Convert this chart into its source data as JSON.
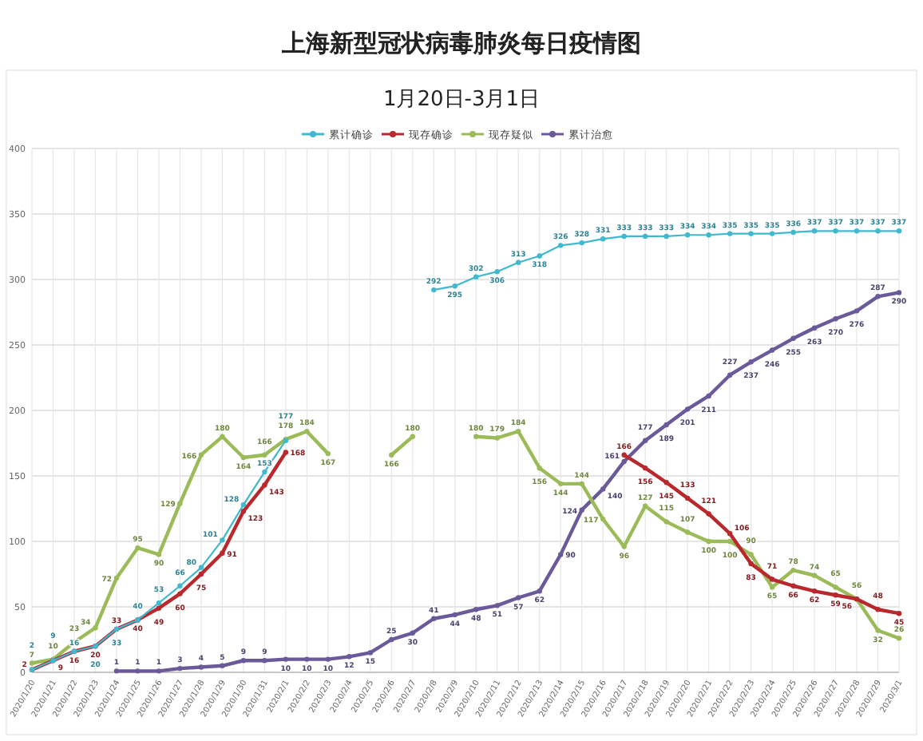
{
  "chart_data": {
    "type": "line",
    "title": "上海新型冠状病毒肺炎每日疫情图",
    "subtitle": "1月20日-3月1日",
    "categories": [
      "2020/1/20",
      "2020/1/21",
      "2020/1/22",
      "2020/1/23",
      "2020/1/24",
      "2020/1/25",
      "2020/1/26",
      "2020/1/27",
      "2020/1/28",
      "2020/1/29",
      "2020/1/30",
      "2020/1/31",
      "2020/2/1",
      "2020/2/2",
      "2020/2/3",
      "2020/2/4",
      "2020/2/5",
      "2020/2/6",
      "2020/2/7",
      "2020/2/8",
      "2020/2/9",
      "2020/2/10",
      "2020/2/11",
      "2020/2/12",
      "2020/2/13",
      "2020/2/14",
      "2020/2/15",
      "2020/2/16",
      "2020/2/17",
      "2020/2/18",
      "2020/2/19",
      "2020/2/20",
      "2020/2/21",
      "2020/2/22",
      "2020/2/23",
      "2020/2/24",
      "2020/2/25",
      "2020/2/26",
      "2020/2/27",
      "2020/2/28",
      "2020/2/29",
      "2020/3/1"
    ],
    "series": [
      {
        "name": "累计确诊",
        "color": "#3fb8d0",
        "values": [
          2,
          9,
          16,
          20,
          33,
          40,
          53,
          66,
          80,
          101,
          128,
          153,
          177,
          null,
          null,
          null,
          null,
          null,
          null,
          292,
          295,
          302,
          306,
          313,
          318,
          326,
          328,
          331,
          333,
          333,
          333,
          334,
          334,
          335,
          335,
          335,
          336,
          337,
          337,
          337,
          337,
          337
        ]
      },
      {
        "name": "现存确诊",
        "color": "#b8282c",
        "values": [
          2,
          9,
          16,
          20,
          33,
          40,
          49,
          60,
          75,
          91,
          123,
          143,
          168,
          null,
          null,
          null,
          null,
          null,
          null,
          null,
          null,
          null,
          null,
          null,
          null,
          null,
          null,
          null,
          166,
          156,
          145,
          133,
          121,
          106,
          83,
          71,
          66,
          62,
          59,
          56,
          48,
          45
        ]
      },
      {
        "name": "现存疑似",
        "color": "#9bbb59",
        "values": [
          7,
          10,
          23,
          34,
          72,
          95,
          90,
          129,
          166,
          180,
          164,
          166,
          178,
          184,
          167,
          null,
          null,
          166,
          180,
          null,
          null,
          180,
          179,
          184,
          156,
          144,
          144,
          117,
          96,
          127,
          115,
          107,
          100,
          100,
          90,
          65,
          78,
          74,
          65,
          56,
          32,
          26
        ]
      },
      {
        "name": "累计治愈",
        "color": "#6a5a9a",
        "values": [
          null,
          null,
          null,
          null,
          1,
          1,
          1,
          3,
          4,
          5,
          9,
          9,
          10,
          10,
          10,
          12,
          15,
          25,
          30,
          41,
          44,
          48,
          51,
          57,
          62,
          90,
          124,
          140,
          161,
          177,
          189,
          201,
          211,
          227,
          237,
          246,
          255,
          263,
          270,
          276,
          287,
          290
        ]
      }
    ],
    "ylim": [
      0,
      400
    ],
    "yticks": [
      0,
      50,
      100,
      150,
      200,
      250,
      300,
      350,
      400
    ],
    "grid": true,
    "legend": "top",
    "marker": "circle",
    "data_labels": true
  }
}
